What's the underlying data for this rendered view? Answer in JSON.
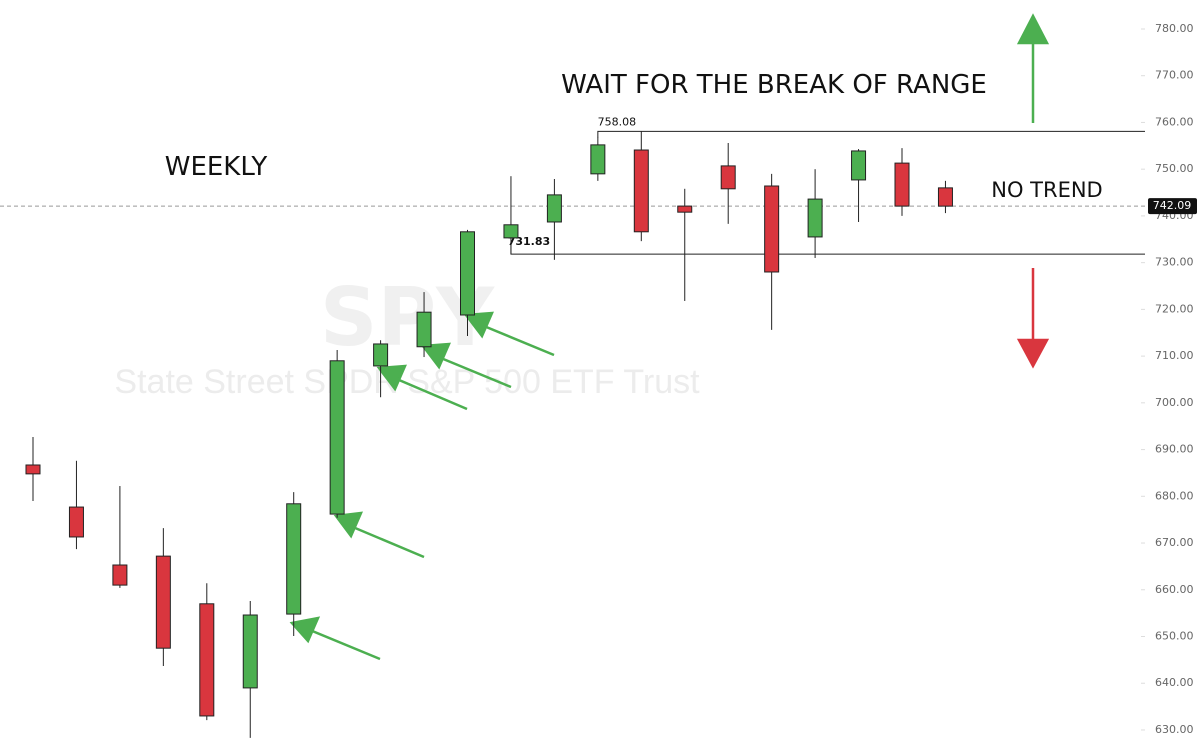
{
  "chart_data": {
    "type": "candlestick",
    "title": "WAIT FOR THE BREAK OF RANGE",
    "annotations": [
      "WEEKLY",
      "NO TREND"
    ],
    "watermark": {
      "symbol": "SPY",
      "name": "State Street SPDR S&P 500 ETF Trust"
    },
    "open": [
      686.7,
      677.7,
      665.3,
      667.2,
      657.0,
      639.0,
      654.8,
      676.2,
      707.9,
      712.0,
      718.8,
      735.3,
      738.7,
      749.0,
      754.1,
      742.1,
      750.7,
      746.4,
      735.5,
      747.7,
      751.3,
      746.0
    ],
    "high": [
      692.7,
      687.6,
      682.2,
      673.2,
      661.4,
      657.6,
      680.9,
      711.3,
      713.4,
      723.7,
      737.0,
      748.5,
      747.9,
      756.9,
      758.08,
      745.8,
      755.6,
      749.0,
      750.0,
      754.3,
      754.5,
      747.5
    ],
    "low": [
      679.0,
      668.7,
      660.4,
      643.7,
      632.1,
      628.3,
      650.1,
      675.4,
      701.2,
      709.8,
      714.3,
      731.83,
      730.6,
      747.5,
      734.6,
      721.8,
      738.3,
      715.6,
      731.0,
      738.7,
      740.0,
      740.6
    ],
    "close": [
      684.8,
      671.3,
      661.0,
      647.5,
      633.0,
      654.6,
      678.4,
      709.0,
      712.6,
      719.4,
      736.6,
      738.1,
      744.5,
      755.2,
      736.6,
      740.8,
      745.8,
      728.0,
      743.6,
      753.9,
      742.1,
      742.09
    ],
    "up_color": "#4caf50",
    "down_color": "#d9363e",
    "range_high": 758.08,
    "range_low": 731.83,
    "last_price": 742.09,
    "ylim": [
      625.5,
      786.2
    ],
    "yticks": [
      {
        "value": 630,
        "label": "630.00"
      },
      {
        "value": 640,
        "label": "640.00"
      },
      {
        "value": 650,
        "label": "650.00"
      },
      {
        "value": 660,
        "label": "660.00"
      },
      {
        "value": 670,
        "label": "670.00"
      },
      {
        "value": 680,
        "label": "680.00"
      },
      {
        "value": 690,
        "label": "690.00"
      },
      {
        "value": 700,
        "label": "700.00"
      },
      {
        "value": 710,
        "label": "710.00"
      },
      {
        "value": 720,
        "label": "720.00"
      },
      {
        "value": 730,
        "label": "730.00"
      },
      {
        "value": 740,
        "label": "740.00"
      },
      {
        "value": 750,
        "label": "750.00"
      },
      {
        "value": 760,
        "label": "760.00"
      },
      {
        "value": 770,
        "label": "770.00"
      },
      {
        "value": 780,
        "label": "780.00"
      }
    ]
  }
}
